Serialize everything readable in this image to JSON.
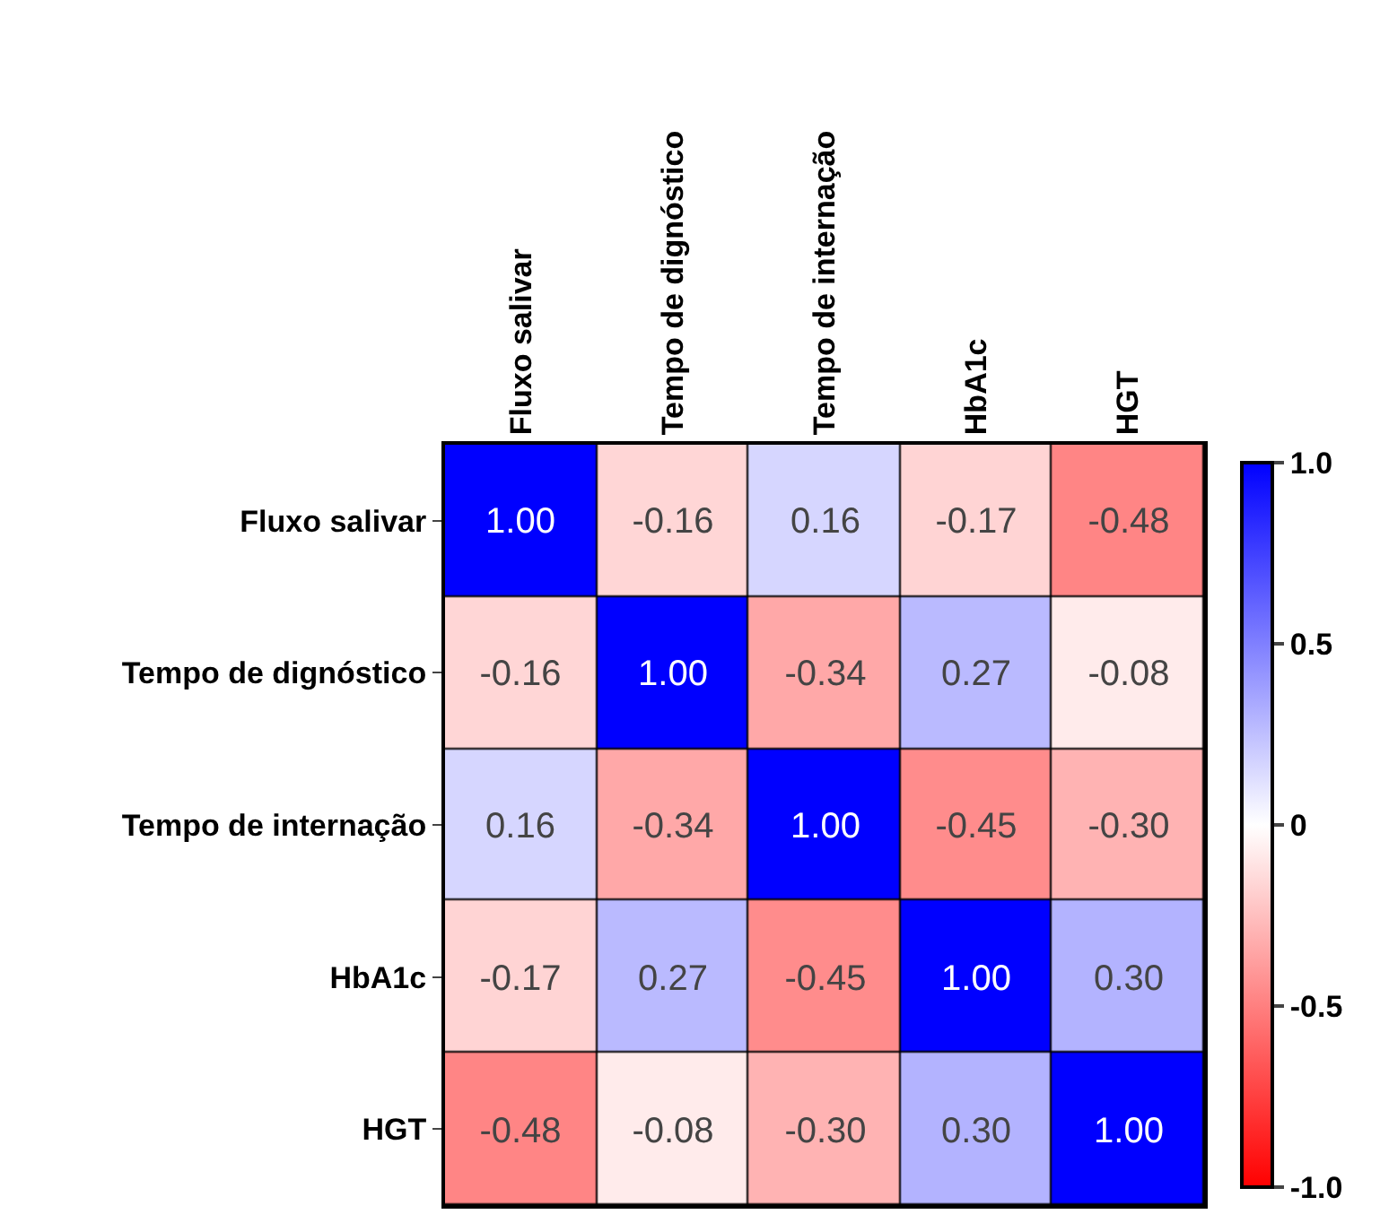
{
  "chart_data": {
    "type": "heatmap",
    "categories": [
      "Fluxo salivar",
      "Tempo de dignóstico",
      "Tempo de internação",
      "HbA1c",
      "HGT"
    ],
    "y_categories": [
      "Fluxo salivar",
      "Tempo de dignóstico",
      "Tempo de internação",
      "HbA1c",
      "HGT"
    ],
    "cells": [
      [
        1.0,
        -0.16,
        0.16,
        -0.17,
        -0.48
      ],
      [
        -0.16,
        1.0,
        -0.34,
        0.27,
        -0.08
      ],
      [
        0.16,
        -0.34,
        1.0,
        -0.45,
        -0.3
      ],
      [
        -0.17,
        0.27,
        -0.45,
        1.0,
        0.3
      ],
      [
        -0.48,
        -0.08,
        -0.3,
        0.3,
        1.0
      ]
    ],
    "cell_labels": [
      [
        "1.00",
        "-0.16",
        "0.16",
        "-0.17",
        "-0.48"
      ],
      [
        "-0.16",
        "1.00",
        "-0.34",
        "0.27",
        "-0.08"
      ],
      [
        "0.16",
        "-0.34",
        "1.00",
        "-0.45",
        "-0.30"
      ],
      [
        "-0.17",
        "0.27",
        "-0.45",
        "1.00",
        "0.30"
      ],
      [
        "-0.48",
        "-0.08",
        "-0.30",
        "0.30",
        "1.00"
      ]
    ],
    "clim": [
      -1,
      1
    ],
    "cticks": [
      {
        "value": 1,
        "label": "1.0"
      },
      {
        "value": 0.5,
        "label": "0.5"
      },
      0,
      {
        "value": -0.5,
        "label": "-0.5"
      },
      {
        "value": -1,
        "label": "-1.0"
      }
    ]
  }
}
